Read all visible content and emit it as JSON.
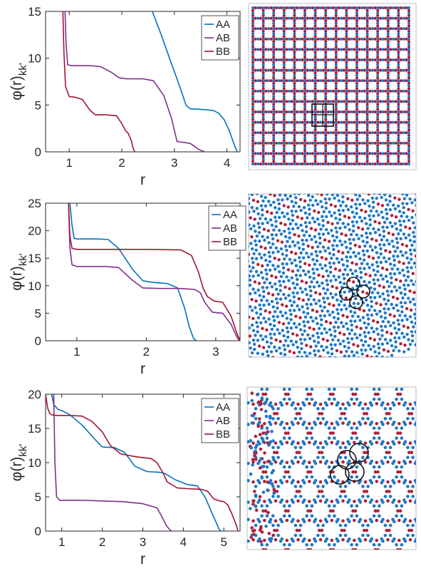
{
  "colors": {
    "AA": "#0072BD",
    "AB": "#7E2F8E",
    "BB": "#A2142F",
    "blue_particle": "#1f77c4",
    "red_particle": "#b0203a"
  },
  "chart_data": [
    {
      "type": "line",
      "ylabel": "φ(r)kk'",
      "xlabel": "r",
      "xlim": [
        0.55,
        4.25
      ],
      "ylim": [
        0,
        15
      ],
      "xticks": [
        "1",
        "2",
        "3",
        "4"
      ],
      "yticks": [
        "0",
        "5",
        "10",
        "15"
      ],
      "xtick_values": [
        1,
        2,
        3,
        4
      ],
      "ytick_values": [
        0,
        5,
        10,
        15
      ],
      "legend_placement": "top-right",
      "series": [
        {
          "name": "AA",
          "x": [
            2.58,
            2.75,
            2.92,
            3.05,
            3.15,
            3.22,
            3.3,
            3.45,
            3.6,
            3.75,
            3.85,
            3.95,
            4.05,
            4.15,
            4.2
          ],
          "y": [
            15,
            12.5,
            9.8,
            7.8,
            6.2,
            5.0,
            4.6,
            4.55,
            4.5,
            4.4,
            4.1,
            3.4,
            2.2,
            0.6,
            0
          ]
        },
        {
          "name": "AB",
          "x": [
            0.92,
            0.94,
            0.97,
            1.05,
            1.4,
            1.6,
            1.8,
            1.95,
            2.1,
            2.4,
            2.6,
            2.8,
            2.95,
            3.05,
            3.2,
            3.3,
            3.38,
            3.45,
            3.55,
            3.58
          ],
          "y": [
            15,
            11.5,
            9.3,
            9.2,
            9.2,
            9.1,
            8.5,
            7.9,
            7.8,
            7.8,
            7.6,
            6.0,
            3.5,
            1.1,
            1.0,
            0.9,
            0.6,
            0.3,
            0.05,
            0
          ]
        },
        {
          "name": "BB",
          "x": [
            0.88,
            0.9,
            0.93,
            1.0,
            1.1,
            1.25,
            1.4,
            1.5,
            1.7,
            1.9,
            2.0,
            2.08,
            2.12,
            2.18,
            2.22,
            2.25
          ],
          "y": [
            15,
            10.5,
            7.0,
            5.9,
            5.85,
            5.6,
            4.4,
            3.95,
            3.95,
            3.85,
            3.0,
            2.2,
            2.0,
            1.2,
            0.3,
            0
          ]
        }
      ]
    },
    {
      "type": "line",
      "ylabel": "φ(r)kk'",
      "xlabel": "r",
      "xlim": [
        0.55,
        3.35
      ],
      "ylim": [
        0,
        25
      ],
      "xticks": [
        "1",
        "2",
        "3"
      ],
      "yticks": [
        "0",
        "5",
        "10",
        "15",
        "20",
        "25"
      ],
      "xtick_values": [
        1,
        2,
        3
      ],
      "ytick_values": [
        0,
        5,
        10,
        15,
        20,
        25
      ],
      "legend_placement": "top-right",
      "series": [
        {
          "name": "AA",
          "x": [
            0.9,
            0.93,
            0.96,
            1.0,
            1.3,
            1.45,
            1.6,
            1.8,
            1.95,
            2.1,
            2.3,
            2.45,
            2.55,
            2.62,
            2.68,
            2.72
          ],
          "y": [
            25,
            21,
            18.6,
            18.5,
            18.5,
            18.4,
            16.8,
            13.0,
            10.9,
            10.6,
            10.4,
            9.6,
            6.0,
            2.5,
            0.4,
            0
          ]
        },
        {
          "name": "AB",
          "x": [
            0.88,
            0.9,
            0.93,
            1.0,
            1.4,
            1.6,
            1.8,
            1.95,
            2.2,
            2.5,
            2.7,
            2.78,
            2.84,
            2.95,
            3.1,
            3.22,
            3.3,
            3.34
          ],
          "y": [
            25,
            17,
            13.8,
            13.5,
            13.5,
            13.3,
            11.0,
            9.6,
            9.5,
            9.5,
            9.3,
            8.7,
            7.0,
            5.2,
            5.0,
            3.0,
            0.8,
            0
          ]
        },
        {
          "name": "BB",
          "x": [
            0.88,
            0.9,
            0.93,
            1.0,
            1.6,
            2.0,
            2.5,
            2.65,
            2.75,
            2.82,
            2.88,
            2.98,
            3.1,
            3.22,
            3.3,
            3.35
          ],
          "y": [
            25,
            19,
            16.8,
            16.6,
            16.6,
            16.6,
            16.5,
            15.5,
            12.5,
            9.5,
            8.0,
            7.2,
            7.0,
            4.5,
            1.5,
            0
          ]
        }
      ]
    },
    {
      "type": "line",
      "ylabel": "φ(r)kk'",
      "xlabel": "r",
      "xlim": [
        0.6,
        5.4
      ],
      "ylim": [
        0,
        20
      ],
      "xticks": [
        "1",
        "2",
        "3",
        "4",
        "5"
      ],
      "yticks": [
        "0",
        "5",
        "10",
        "15",
        "20"
      ],
      "xtick_values": [
        1,
        2,
        3,
        4,
        5
      ],
      "ytick_values": [
        0,
        5,
        10,
        15,
        20
      ],
      "legend_placement": "top-right",
      "series": [
        {
          "name": "AA",
          "x": [
            0.75,
            0.8,
            0.9,
            1.0,
            1.2,
            1.5,
            1.8,
            2.0,
            2.3,
            2.55,
            2.8,
            3.1,
            3.4,
            3.55,
            3.8,
            4.1,
            4.35,
            4.55,
            4.7,
            4.8,
            4.87,
            4.92
          ],
          "y": [
            20,
            18.5,
            17.8,
            17.6,
            17.0,
            15.5,
            13.5,
            12.3,
            12.2,
            11.5,
            9.5,
            8.7,
            8.6,
            8.4,
            7.5,
            6.8,
            6.6,
            4.8,
            2.7,
            1.4,
            0.4,
            0
          ]
        },
        {
          "name": "AB",
          "x": [
            0.8,
            0.83,
            0.87,
            0.95,
            1.5,
            2.0,
            2.5,
            3.0,
            3.35,
            3.48,
            3.58,
            3.68,
            3.72
          ],
          "y": [
            20,
            10,
            5.0,
            4.5,
            4.5,
            4.4,
            4.3,
            4.0,
            3.4,
            2.0,
            0.8,
            0.1,
            0
          ]
        },
        {
          "name": "BB",
          "x": [
            0.6,
            0.65,
            0.7,
            0.75,
            0.85,
            1.2,
            1.5,
            1.75,
            2.0,
            2.2,
            2.45,
            2.7,
            2.9,
            3.2,
            3.35,
            3.5,
            3.6,
            3.85,
            4.1,
            4.45,
            4.6,
            4.75,
            4.9,
            5.0,
            5.1,
            5.2,
            5.3,
            5.35
          ],
          "y": [
            20,
            18,
            17.2,
            17.0,
            16.9,
            16.9,
            16.8,
            16.0,
            14.5,
            12.5,
            11.3,
            11.0,
            10.8,
            10.6,
            10.0,
            8.5,
            7.2,
            6.3,
            6.2,
            6.1,
            5.8,
            4.7,
            4.4,
            4.3,
            3.8,
            2.5,
            1.0,
            0
          ]
        }
      ]
    }
  ],
  "snapshots": [
    {
      "lattice": "square",
      "highlight": "square"
    },
    {
      "lattice": "triangular-rings",
      "highlight": "three-rings"
    },
    {
      "lattice": "large-rings",
      "highlight": "three-rings"
    }
  ]
}
